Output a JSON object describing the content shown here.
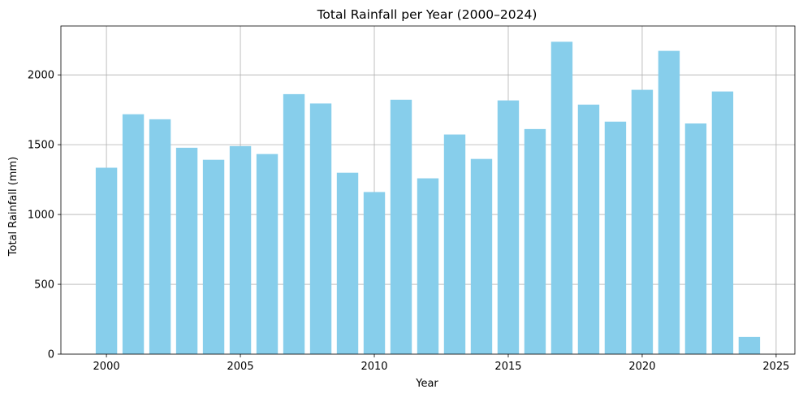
{
  "chart_data": {
    "type": "bar",
    "title": "Total Rainfall per Year (2000–2024)",
    "xlabel": "Year",
    "ylabel": "Total Rainfall (mm)",
    "categories": [
      2000,
      2001,
      2002,
      2003,
      2004,
      2005,
      2006,
      2007,
      2008,
      2009,
      2010,
      2011,
      2012,
      2013,
      2014,
      2015,
      2016,
      2017,
      2018,
      2019,
      2020,
      2021,
      2022,
      2023,
      2024
    ],
    "values": [
      1335,
      1718,
      1682,
      1478,
      1392,
      1490,
      1433,
      1862,
      1795,
      1299,
      1161,
      1822,
      1259,
      1573,
      1398,
      1817,
      1612,
      2237,
      1787,
      1665,
      1893,
      2172,
      1652,
      1881,
      123
    ],
    "xlim": [
      1998.3,
      2025.7
    ],
    "ylim": [
      0,
      2350
    ],
    "xticks": [
      2000,
      2005,
      2010,
      2015,
      2020,
      2025
    ],
    "yticks": [
      0,
      500,
      1000,
      1500,
      2000
    ],
    "grid": true,
    "bar_color": "#87ceeb"
  }
}
